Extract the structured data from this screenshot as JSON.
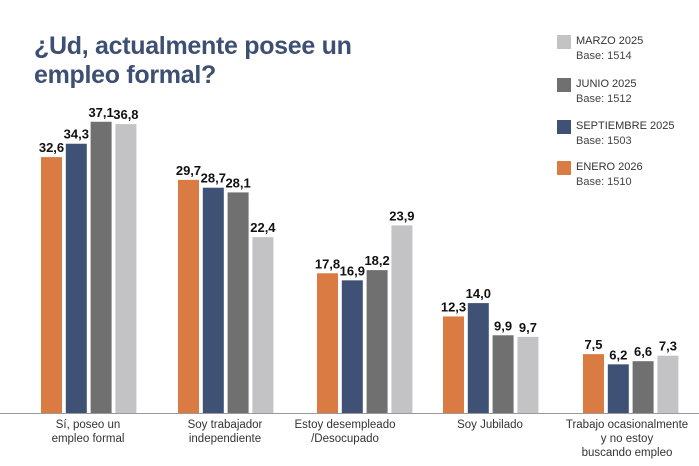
{
  "chart_data": {
    "type": "bar",
    "title": "¿Ud, actualmente posee un empleo formal?",
    "categories": [
      [
        "Sí, poseo un",
        "empleo formal"
      ],
      [
        "Soy trabajador",
        "independiente"
      ],
      [
        "Estoy desempleado",
        "/Desocupado"
      ],
      [
        "Soy Jubilado"
      ],
      [
        "Trabajo ocasionalmente",
        "y no estoy",
        "buscando empleo"
      ]
    ],
    "series": [
      {
        "name": "ENERO 2026",
        "base": "Base: 1510",
        "color": "#d97b42",
        "values": [
          32.6,
          29.7,
          17.8,
          12.3,
          7.5
        ]
      },
      {
        "name": "SEPTIEMBRE 2025",
        "base": "Base: 1503",
        "color": "#3f5275",
        "values": [
          34.3,
          28.7,
          16.9,
          14.0,
          6.2
        ]
      },
      {
        "name": "JUNIO 2025",
        "base": "Base: 1512",
        "color": "#707070",
        "values": [
          37.1,
          28.1,
          18.2,
          9.9,
          6.6
        ]
      },
      {
        "name": "MARZO 2025",
        "base": "Base: 1514",
        "color": "#c3c3c6",
        "values": [
          36.8,
          22.4,
          23.9,
          9.7,
          7.3
        ]
      }
    ],
    "legend_order": [
      "MARZO 2025",
      "JUNIO 2025",
      "SEPTIEMBRE 2025",
      "ENERO 2026"
    ],
    "legend_position": "top-right",
    "ylim": [
      0,
      38
    ],
    "grid": false,
    "decimal_separator": ","
  }
}
